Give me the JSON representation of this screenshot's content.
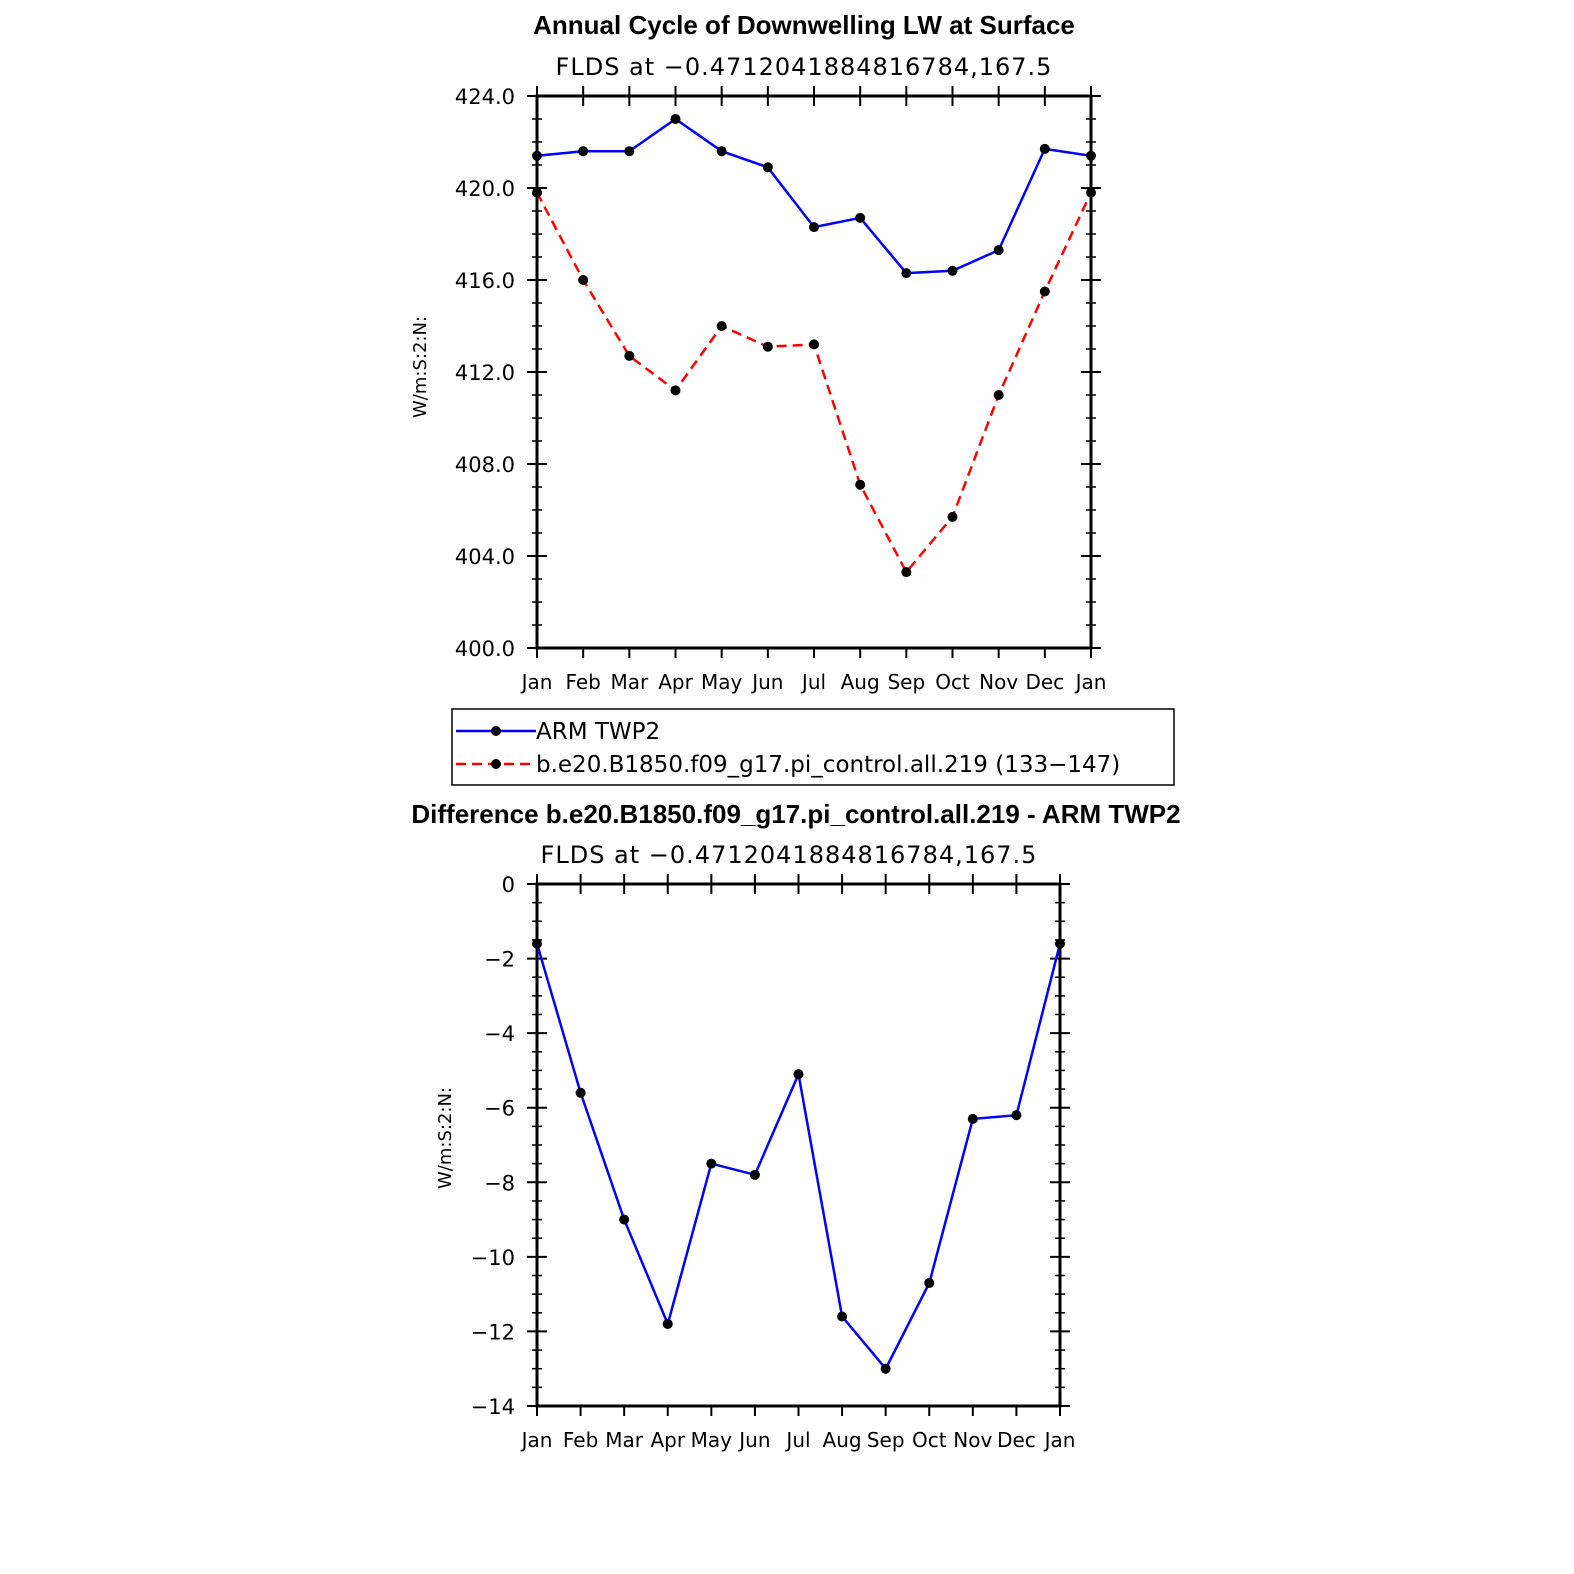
{
  "chart_data": [
    {
      "type": "line",
      "title": "Annual Cycle of Downwelling LW at Surface",
      "subtitle": "FLDS at −0.4712041884816784,167.5",
      "ylabel": "W/m:S:2:N:",
      "xlabel": "",
      "categories": [
        "Jan",
        "Feb",
        "Mar",
        "Apr",
        "May",
        "Jun",
        "Jul",
        "Aug",
        "Sep",
        "Oct",
        "Nov",
        "Dec",
        "Jan"
      ],
      "ylim": [
        400,
        424
      ],
      "yticks": [
        "400.0",
        "404.0",
        "408.0",
        "412.0",
        "416.0",
        "420.0",
        "424.0"
      ],
      "series": [
        {
          "name": "ARM TWP2",
          "color": "#0000ff",
          "dash": false,
          "values": [
            421.4,
            421.6,
            421.6,
            423.0,
            421.6,
            420.9,
            418.3,
            418.7,
            416.3,
            416.4,
            417.3,
            421.7,
            421.4
          ]
        },
        {
          "name": "b.e20.B1850.f09_g17.pi_control.all.219 (133−147)",
          "color": "#ff0000",
          "dash": true,
          "values": [
            419.8,
            416.0,
            412.7,
            411.2,
            414.0,
            413.1,
            413.2,
            407.1,
            403.3,
            405.7,
            411.0,
            415.5,
            419.8
          ]
        }
      ],
      "legend": "bottom"
    },
    {
      "type": "line",
      "title": "Difference b.e20.B1850.f09_g17.pi_control.all.219 - ARM TWP2",
      "subtitle": "FLDS at −0.4712041884816784,167.5",
      "ylabel": "W/m:S:2:N:",
      "xlabel": "",
      "categories": [
        "Jan",
        "Feb",
        "Mar",
        "Apr",
        "May",
        "Jun",
        "Jul",
        "Aug",
        "Sep",
        "Oct",
        "Nov",
        "Dec",
        "Jan"
      ],
      "ylim": [
        -14,
        0
      ],
      "yticks": [
        "−14",
        "−12",
        "−10",
        "−8",
        "−6",
        "−4",
        "−2",
        "0"
      ],
      "series": [
        {
          "color": "#0000ff",
          "dash": false,
          "values": [
            -1.6,
            -5.6,
            -9.0,
            -11.8,
            -7.5,
            -7.8,
            -5.1,
            -11.6,
            -13.0,
            -10.7,
            -6.3,
            -6.2,
            -1.6
          ]
        }
      ]
    }
  ]
}
